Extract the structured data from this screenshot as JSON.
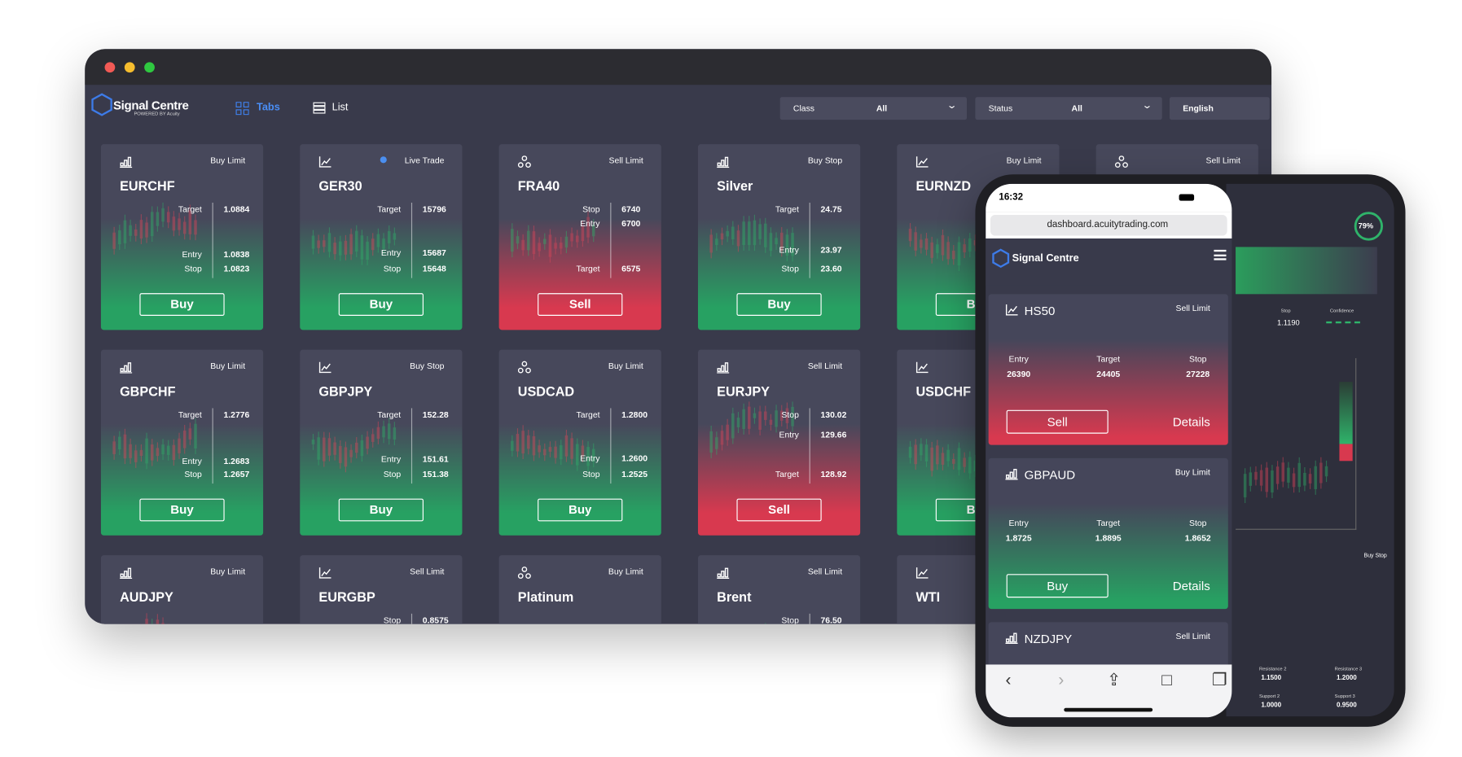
{
  "header": {
    "brand": "Signal Centre",
    "brand_sub": "POWERED BY Acuity",
    "nav": [
      "Tabs",
      "List"
    ],
    "filters": [
      {
        "label": "Class",
        "value": "All"
      },
      {
        "label": "Status",
        "value": "All"
      }
    ],
    "language": "English"
  },
  "cards": [
    [
      {
        "symbol": "EURCHF",
        "order": "Buy Limit",
        "levels": [
          {
            "label": "Target",
            "value": "1.0884"
          },
          {
            "label": "Entry",
            "value": "1.0838"
          },
          {
            "label": "Stop",
            "value": "1.0823"
          }
        ],
        "action": "Buy",
        "color": "#27a162"
      },
      {
        "symbol": "GER30",
        "order": "Live Trade",
        "dot": "#4b8ff0",
        "levels": [
          {
            "label": "Target",
            "value": "15796"
          },
          {
            "label": "Entry",
            "value": "15687"
          },
          {
            "label": "Stop",
            "value": "15648"
          }
        ],
        "action": "Buy",
        "color": "#27a162"
      },
      {
        "symbol": "FRA40",
        "order": "Sell Limit",
        "levels": [
          {
            "label": "Stop",
            "value": "6740"
          },
          {
            "label": "Entry",
            "value": "6700"
          },
          {
            "label": "Target",
            "value": "6575"
          }
        ],
        "action": "Sell",
        "color": "#d8394f"
      },
      {
        "symbol": "Silver",
        "order": "Buy Stop",
        "levels": [
          {
            "label": "Target",
            "value": "24.75"
          },
          {
            "label": "Entry",
            "value": "23.97"
          },
          {
            "label": "Stop",
            "value": "23.60"
          }
        ],
        "action": "Buy",
        "color": "#27a162"
      },
      {
        "symbol": "EURNZD",
        "order": "Buy Limit",
        "levels": [],
        "action": "Buy",
        "color": "#27a162"
      },
      {
        "order": "Sell Limit",
        "levels": []
      }
    ],
    [
      {
        "symbol": "GBPCHF",
        "order": "Buy Limit",
        "levels": [
          {
            "label": "Target",
            "value": "1.2776"
          },
          {
            "label": "Entry",
            "value": "1.2683"
          },
          {
            "label": "Stop",
            "value": "1.2657"
          }
        ],
        "action": "Buy",
        "color": "#27a162"
      },
      {
        "symbol": "GBPJPY",
        "order": "Buy Stop",
        "levels": [
          {
            "label": "Target",
            "value": "152.28"
          },
          {
            "label": "Entry",
            "value": "151.61"
          },
          {
            "label": "Stop",
            "value": "151.38"
          }
        ],
        "action": "Buy",
        "color": "#27a162"
      },
      {
        "symbol": "USDCAD",
        "order": "Buy Limit",
        "levels": [
          {
            "label": "Target",
            "value": "1.2800"
          },
          {
            "label": "Entry",
            "value": "1.2600"
          },
          {
            "label": "Stop",
            "value": "1.2525"
          }
        ],
        "action": "Buy",
        "color": "#27a162"
      },
      {
        "symbol": "EURJPY",
        "order": "Sell Limit",
        "levels": [
          {
            "label": "Stop",
            "value": "130.02"
          },
          {
            "label": "Entry",
            "value": "129.66"
          },
          {
            "label": "Target",
            "value": "128.92"
          }
        ],
        "action": "Sell",
        "color": "#d8394f"
      },
      {
        "symbol": "USDCHF",
        "levels": [],
        "action": "Buy",
        "color": "#27a162"
      }
    ],
    [
      {
        "symbol": "AUDJPY",
        "order": "Buy Limit",
        "levels": []
      },
      {
        "symbol": "EURGBP",
        "order": "Sell Limit",
        "levels": [
          {
            "label": "Stop",
            "value": "0.8575"
          }
        ]
      },
      {
        "symbol": "Platinum",
        "order": "Buy Limit",
        "levels": []
      },
      {
        "symbol": "Brent",
        "order": "Sell Limit",
        "levels": [
          {
            "label": "Stop",
            "value": "76.50"
          }
        ]
      },
      {
        "symbol": "WTI",
        "levels": []
      }
    ]
  ],
  "phone": {
    "time": "16:32",
    "url": "dashboard.acuitytrading.com",
    "brand": "Signal Centre",
    "cards": [
      {
        "symbol": "HS50",
        "order": "Sell Limit",
        "levels": [
          {
            "label": "Entry",
            "value": "26390"
          },
          {
            "label": "Target",
            "value": "24405"
          },
          {
            "label": "Stop",
            "value": "27228"
          }
        ],
        "action": "Sell",
        "details": "Details",
        "color": "#d8394f"
      },
      {
        "symbol": "GBPAUD",
        "order": "Buy Limit",
        "levels": [
          {
            "label": "Entry",
            "value": "1.8725"
          },
          {
            "label": "Target",
            "value": "1.8895"
          },
          {
            "label": "Stop",
            "value": "1.8652"
          }
        ],
        "action": "Buy",
        "details": "Details",
        "color": "#27a162"
      },
      {
        "symbol": "NZDJPY",
        "order": "Sell Limit",
        "levels": []
      }
    ]
  },
  "tablet": {
    "confidence": "79%",
    "stop_label": "Stop",
    "stop_value": "1.1190",
    "confidence_label": "Confidence",
    "order": "Buy Stop",
    "levels": [
      {
        "label": "Resistance 2",
        "value": "1.1500"
      },
      {
        "label": "Resistance 3",
        "value": "1.2000"
      },
      {
        "label": "Support 2",
        "value": "1.0000"
      },
      {
        "label": "Support 3",
        "value": "0.9500"
      }
    ]
  }
}
